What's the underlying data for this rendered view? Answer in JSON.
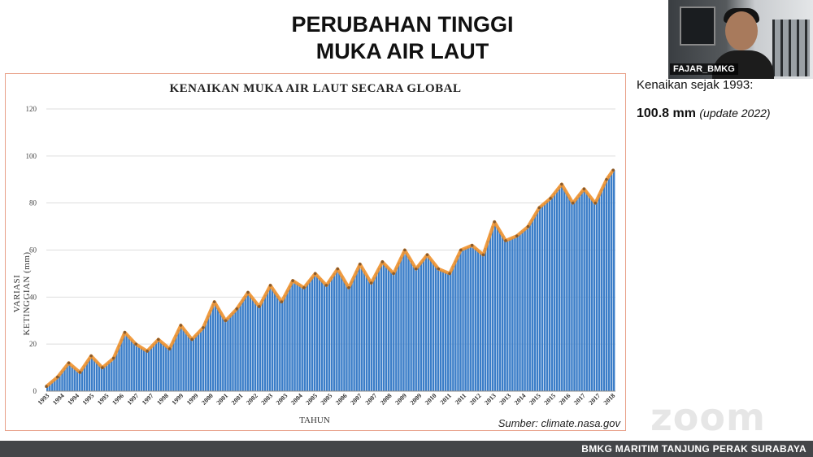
{
  "slide": {
    "title_line1": "PERUBAHAN TINGGI",
    "title_line2": "MUKA AIR LAUT",
    "info_label": "Kenaikan sejak 1993:",
    "info_value": "100.8 mm",
    "info_note": "(update 2022)",
    "source": "Sumber: climate.nasa.gov",
    "footer": "BMKG MARITIM TANJUNG PERAK SURABAYA"
  },
  "webcam": {
    "participant_name": "FAJAR_BMKG"
  },
  "zoom_watermark": "zoom",
  "chart_data": {
    "type": "bar",
    "title": "KENAIKAN MUKA AIR LAUT SECARA GLOBAL",
    "xlabel": "TAHUN",
    "ylabel": "VARIASI KETINGGIAN (mm)",
    "ylim": [
      0,
      120
    ],
    "yticks": [
      0,
      20,
      40,
      60,
      80,
      100,
      120
    ],
    "grid": true,
    "overlay_line_color": "#f0922e",
    "bar_color": "#3a7dc8",
    "x_tick_labels": [
      "1993",
      "1994",
      "1994",
      "1995",
      "1995",
      "1996",
      "1997",
      "1997",
      "1998",
      "1999",
      "1999",
      "2000",
      "2001",
      "2001",
      "2002",
      "2003",
      "2003",
      "2004",
      "2005",
      "2005",
      "2006",
      "2007",
      "2007",
      "2008",
      "2009",
      "2009",
      "2010",
      "2011",
      "2011",
      "2012",
      "2013",
      "2013",
      "2014",
      "2015",
      "2015",
      "2016",
      "2017",
      "2017",
      "2018"
    ],
    "x": [
      1993.0,
      1993.5,
      1994.0,
      1994.5,
      1995.0,
      1995.5,
      1996.0,
      1996.5,
      1997.0,
      1997.5,
      1998.0,
      1998.5,
      1999.0,
      1999.5,
      2000.0,
      2000.5,
      2001.0,
      2001.5,
      2002.0,
      2002.5,
      2003.0,
      2003.5,
      2004.0,
      2004.5,
      2005.0,
      2005.5,
      2006.0,
      2006.5,
      2007.0,
      2007.5,
      2008.0,
      2008.5,
      2009.0,
      2009.5,
      2010.0,
      2010.5,
      2011.0,
      2011.5,
      2012.0,
      2012.5,
      2013.0,
      2013.5,
      2014.0,
      2014.5,
      2015.0,
      2015.5,
      2016.0,
      2016.5,
      2017.0,
      2017.5,
      2018.0,
      2018.3
    ],
    "values": [
      2,
      6,
      12,
      8,
      15,
      10,
      14,
      25,
      20,
      17,
      22,
      18,
      28,
      22,
      27,
      38,
      30,
      35,
      42,
      36,
      45,
      38,
      47,
      44,
      50,
      45,
      52,
      44,
      54,
      46,
      55,
      50,
      60,
      52,
      58,
      52,
      50,
      60,
      62,
      58,
      72,
      64,
      66,
      70,
      78,
      82,
      88,
      80,
      86,
      80,
      90,
      94
    ]
  }
}
